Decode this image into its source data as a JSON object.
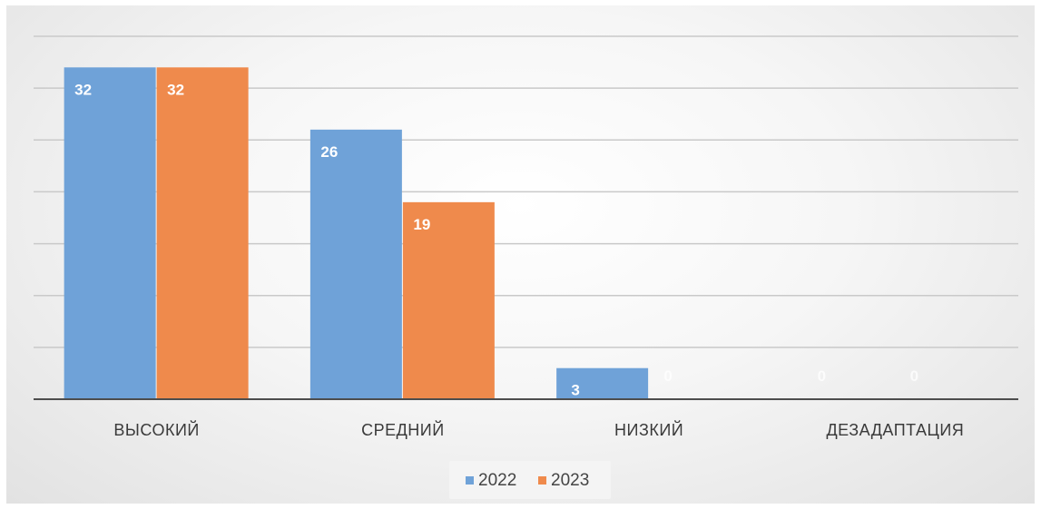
{
  "chart_data": {
    "type": "bar",
    "title": "",
    "xlabel": "",
    "ylabel": "",
    "categories": [
      "ВЫСОКИЙ",
      "СРЕДНИЙ",
      "НИЗКИЙ",
      "ДЕЗАДАПТАЦИЯ"
    ],
    "series": [
      {
        "name": "2022",
        "values": [
          32,
          26,
          3,
          0
        ],
        "color": "#6fa2d8"
      },
      {
        "name": "2023",
        "values": [
          32,
          19,
          0,
          0
        ],
        "color": "#ef8a4c"
      }
    ],
    "ylim": [
      0,
      35
    ],
    "grid": true,
    "legend_position": "bottom",
    "data_labels": true
  }
}
